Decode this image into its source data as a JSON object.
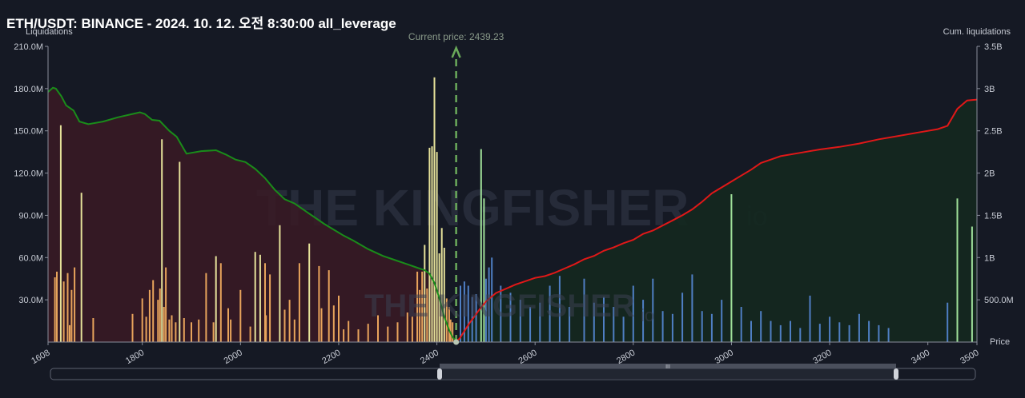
{
  "header": {
    "title": "ETH/USDT: BINANCE - 2024. 10. 12. 오전 8:30:00 all_leverage"
  },
  "watermark": {
    "text": "THE KINGFISHER",
    "suffix": "io"
  },
  "chart_data": {
    "type": "bar",
    "title": "ETH/USDT: BINANCE - 2024. 10. 12. 오전 8:30:00 all_leverage",
    "xlabel": "Price",
    "ylabel_left": "Liquidations",
    "ylabel_right": "Cum. liquidations",
    "xlim": [
      1608,
      3500
    ],
    "ylim_left": [
      0,
      210000000
    ],
    "ylim_right": [
      0,
      3500000000
    ],
    "x_ticks": [
      1608,
      1800,
      2000,
      2200,
      2400,
      2600,
      2800,
      3000,
      3200,
      3400,
      3500
    ],
    "y_left_ticks": [
      {
        "v": 30000000,
        "label": "30.0M"
      },
      {
        "v": 60000000,
        "label": "60.0M"
      },
      {
        "v": 90000000,
        "label": "90.0M"
      },
      {
        "v": 120000000,
        "label": "120.0M"
      },
      {
        "v": 150000000,
        "label": "150.0M"
      },
      {
        "v": 180000000,
        "label": "180.0M"
      },
      {
        "v": 210000000,
        "label": "210.0M"
      }
    ],
    "y_right_ticks": [
      {
        "v": 500000000,
        "label": "500.0M"
      },
      {
        "v": 1000000000,
        "label": "1B"
      },
      {
        "v": 1500000000,
        "label": "1.5B"
      },
      {
        "v": 2000000000,
        "label": "2B"
      },
      {
        "v": 2500000000,
        "label": "2.5B"
      },
      {
        "v": 3000000000,
        "label": "3B"
      },
      {
        "v": 3500000000,
        "label": "3.5B"
      }
    ],
    "current_price": {
      "label": "Current price: 2439.23",
      "value": 2439.23
    },
    "colors": {
      "long_bar": "#e8a45c",
      "long_bar_tall": "#e6e29a",
      "short_bar": "#4f7fc4",
      "short_bar_tall": "#9fe09a",
      "long_cum": "#1a8c1a",
      "short_cum": "#e01818",
      "long_fill": "#3a1a24",
      "short_fill": "#14281f",
      "current_price": "#6aaa5a"
    },
    "series": [
      {
        "name": "long_liquidations",
        "x": [
          1622,
          1626,
          1634,
          1640,
          1648,
          1652,
          1656,
          1662,
          1676,
          1700,
          1780,
          1800,
          1808,
          1815,
          1822,
          1832,
          1836,
          1840,
          1844,
          1848,
          1855,
          1860,
          1868,
          1876,
          1885,
          1900,
          1915,
          1930,
          1945,
          1950,
          1960,
          1975,
          1980,
          2000,
          2020,
          2030,
          2040,
          2050,
          2052,
          2060,
          2080,
          2090,
          2100,
          2110,
          2120,
          2140,
          2160,
          2165,
          2180,
          2190,
          2200,
          2210,
          2220,
          2240,
          2260,
          2280,
          2300,
          2320,
          2340,
          2350,
          2360,
          2365,
          2370,
          2375,
          2380,
          2385,
          2390,
          2395,
          2400,
          2405,
          2410,
          2415,
          2420,
          2425,
          2428,
          2432
        ],
        "y": [
          46000000,
          50000000,
          154000000,
          43000000,
          49000000,
          12000000,
          37000000,
          53000000,
          106000000,
          17000000,
          20000000,
          31000000,
          18000000,
          37000000,
          44000000,
          30000000,
          38000000,
          144000000,
          25000000,
          53000000,
          16000000,
          19000000,
          14000000,
          128000000,
          17000000,
          14000000,
          16000000,
          49000000,
          14000000,
          61000000,
          56000000,
          24000000,
          16000000,
          37000000,
          11000000,
          64000000,
          62000000,
          56000000,
          19000000,
          48000000,
          83000000,
          23000000,
          30000000,
          16000000,
          56000000,
          70000000,
          54000000,
          24000000,
          51000000,
          26000000,
          33000000,
          9000000,
          15000000,
          9000000,
          13000000,
          19000000,
          11000000,
          14000000,
          21000000,
          18000000,
          50000000,
          37000000,
          50000000,
          69000000,
          38000000,
          138000000,
          139000000,
          188000000,
          135000000,
          63000000,
          81000000,
          67000000,
          31000000,
          25000000,
          16000000,
          14000000
        ]
      },
      {
        "name": "short_liquidations",
        "x": [
          2448,
          2456,
          2464,
          2472,
          2480,
          2490,
          2496,
          2500,
          2506,
          2512,
          2530,
          2550,
          2570,
          2590,
          2610,
          2630,
          2650,
          2670,
          2700,
          2720,
          2740,
          2760,
          2780,
          2800,
          2820,
          2840,
          2860,
          2880,
          2900,
          2920,
          2940,
          2960,
          2980,
          3000,
          3020,
          3040,
          3060,
          3080,
          3100,
          3120,
          3140,
          3160,
          3180,
          3200,
          3220,
          3240,
          3260,
          3280,
          3300,
          3320,
          3440,
          3460,
          3490
        ],
        "y": [
          40000000,
          43000000,
          40000000,
          32000000,
          34000000,
          137000000,
          102000000,
          45000000,
          53000000,
          60000000,
          40000000,
          35000000,
          30000000,
          25000000,
          28000000,
          40000000,
          47000000,
          25000000,
          45000000,
          28000000,
          32000000,
          25000000,
          18000000,
          40000000,
          30000000,
          45000000,
          22000000,
          20000000,
          35000000,
          48000000,
          22000000,
          20000000,
          30000000,
          105000000,
          25000000,
          15000000,
          22000000,
          15000000,
          12000000,
          15000000,
          10000000,
          33000000,
          13000000,
          18000000,
          14000000,
          12000000,
          20000000,
          15000000,
          12000000,
          10000000,
          28000000,
          102000000,
          82000000
        ]
      },
      {
        "name": "cum_long",
        "x": [
          1608,
          1618,
          1624,
          1635,
          1645,
          1660,
          1672,
          1690,
          1720,
          1750,
          1780,
          1795,
          1805,
          1820,
          1835,
          1855,
          1870,
          1890,
          1920,
          1950,
          1970,
          1990,
          2010,
          2030,
          2050,
          2070,
          2090,
          2110,
          2130,
          2150,
          2170,
          2190,
          2210,
          2230,
          2260,
          2290,
          2320,
          2340,
          2360,
          2375,
          2385,
          2395,
          2405,
          2415,
          2425,
          2432,
          2439
        ],
        "y": [
          2960000000,
          3010000000,
          3000000000,
          2910000000,
          2800000000,
          2740000000,
          2610000000,
          2580000000,
          2610000000,
          2660000000,
          2700000000,
          2720000000,
          2700000000,
          2630000000,
          2620000000,
          2500000000,
          2430000000,
          2230000000,
          2260000000,
          2270000000,
          2220000000,
          2160000000,
          2130000000,
          2050000000,
          1940000000,
          1800000000,
          1690000000,
          1640000000,
          1560000000,
          1480000000,
          1400000000,
          1330000000,
          1260000000,
          1200000000,
          1100000000,
          1020000000,
          960000000,
          920000000,
          880000000,
          850000000,
          810000000,
          700000000,
          520000000,
          300000000,
          140000000,
          60000000,
          10000000
        ]
      },
      {
        "name": "cum_short",
        "x": [
          2439,
          2446,
          2456,
          2466,
          2476,
          2486,
          2500,
          2520,
          2540,
          2560,
          2580,
          2600,
          2620,
          2640,
          2660,
          2680,
          2700,
          2720,
          2740,
          2760,
          2780,
          2800,
          2820,
          2840,
          2860,
          2880,
          2900,
          2920,
          2940,
          2960,
          2980,
          3000,
          3020,
          3040,
          3060,
          3080,
          3100,
          3140,
          3180,
          3220,
          3260,
          3300,
          3340,
          3380,
          3420,
          3440,
          3460,
          3480,
          3500
        ],
        "y": [
          10000000,
          40000000,
          130000000,
          220000000,
          300000000,
          380000000,
          480000000,
          580000000,
          630000000,
          680000000,
          720000000,
          760000000,
          780000000,
          820000000,
          870000000,
          920000000,
          980000000,
          1020000000,
          1080000000,
          1120000000,
          1170000000,
          1210000000,
          1280000000,
          1320000000,
          1380000000,
          1440000000,
          1500000000,
          1570000000,
          1660000000,
          1760000000,
          1830000000,
          1900000000,
          1970000000,
          2040000000,
          2120000000,
          2160000000,
          2200000000,
          2240000000,
          2280000000,
          2310000000,
          2350000000,
          2400000000,
          2440000000,
          2480000000,
          2520000000,
          2560000000,
          2760000000,
          2860000000,
          2870000000
        ]
      }
    ]
  },
  "scrollbar": {
    "grip_label": "III"
  }
}
